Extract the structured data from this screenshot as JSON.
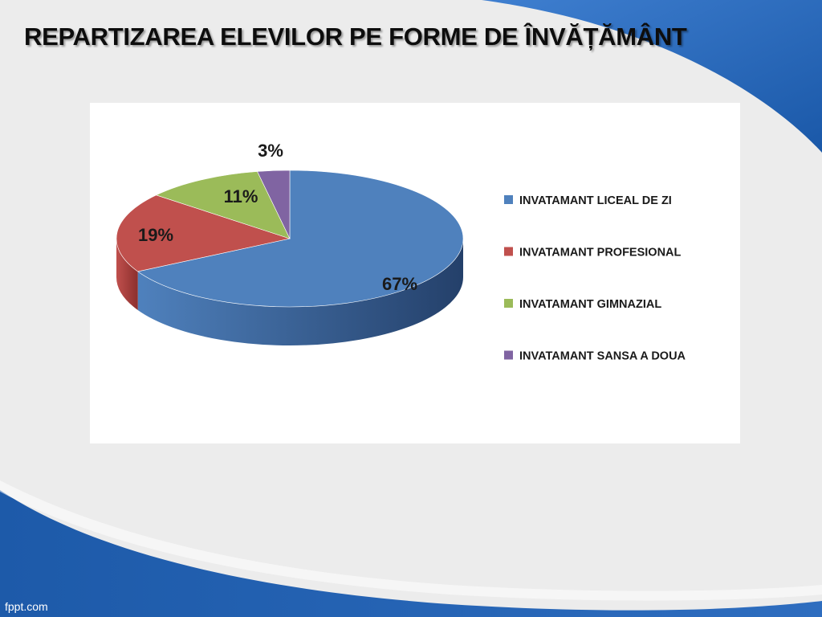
{
  "slide": {
    "title": "REPARTIZAREA ELEVILOR PE FORME DE ÎNVĂȚĂMÂNT",
    "footer": "fppt.com"
  },
  "colors": {
    "background": "#ececec",
    "accent_blue": "#1f5fae",
    "panel": "#ffffff"
  },
  "chart_data": {
    "type": "pie",
    "style": "3d",
    "title": "",
    "legend_position": "right",
    "series": [
      {
        "name": "INVATAMANT LICEAL DE ZI",
        "value": 67,
        "label": "67%",
        "color": "#4f81bd",
        "dark": "#24406a"
      },
      {
        "name": "INVATAMANT PROFESIONAL",
        "value": 19,
        "label": "19%",
        "color": "#c0504d",
        "dark": "#8c2f2d"
      },
      {
        "name": "INVATAMANT GIMNAZIAL",
        "value": 11,
        "label": "11%",
        "color": "#9bbb59",
        "dark": "#6d8a36"
      },
      {
        "name": "INVATAMANT SANSA A DOUA",
        "value": 3,
        "label": "3%",
        "color": "#8064a2",
        "dark": "#5a4476"
      }
    ]
  }
}
